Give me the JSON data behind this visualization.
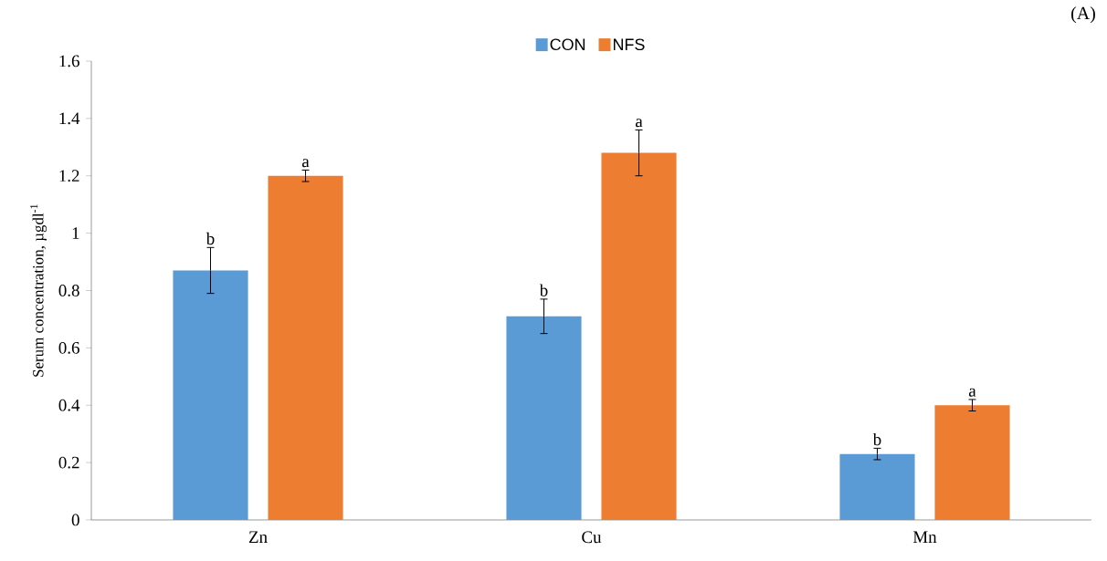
{
  "chart_data": {
    "type": "bar",
    "ylabel": "Serum concentration, µgdl$^{-1}$",
    "categories": [
      "Zn",
      "Cu",
      "Mn"
    ],
    "series": [
      {
        "name": "CON",
        "color": "#5b9bd5",
        "values": [
          0.87,
          0.71,
          0.23
        ],
        "errors": [
          0.08,
          0.06,
          0.02
        ]
      },
      {
        "name": "NFS",
        "color": "#ed7d31",
        "values": [
          1.2,
          1.28,
          0.4
        ],
        "errors": [
          0.02,
          0.08,
          0.02
        ]
      }
    ],
    "ylim": [
      0,
      1.6
    ],
    "yticks": [
      0,
      0.2,
      0.4,
      0.6,
      0.8,
      1,
      1.2,
      1.4,
      1.6
    ],
    "legend": "top",
    "grid": false,
    "annotations": [
      "b",
      "a",
      "b",
      "a",
      "b",
      "a",
      "(A)"
    ]
  }
}
